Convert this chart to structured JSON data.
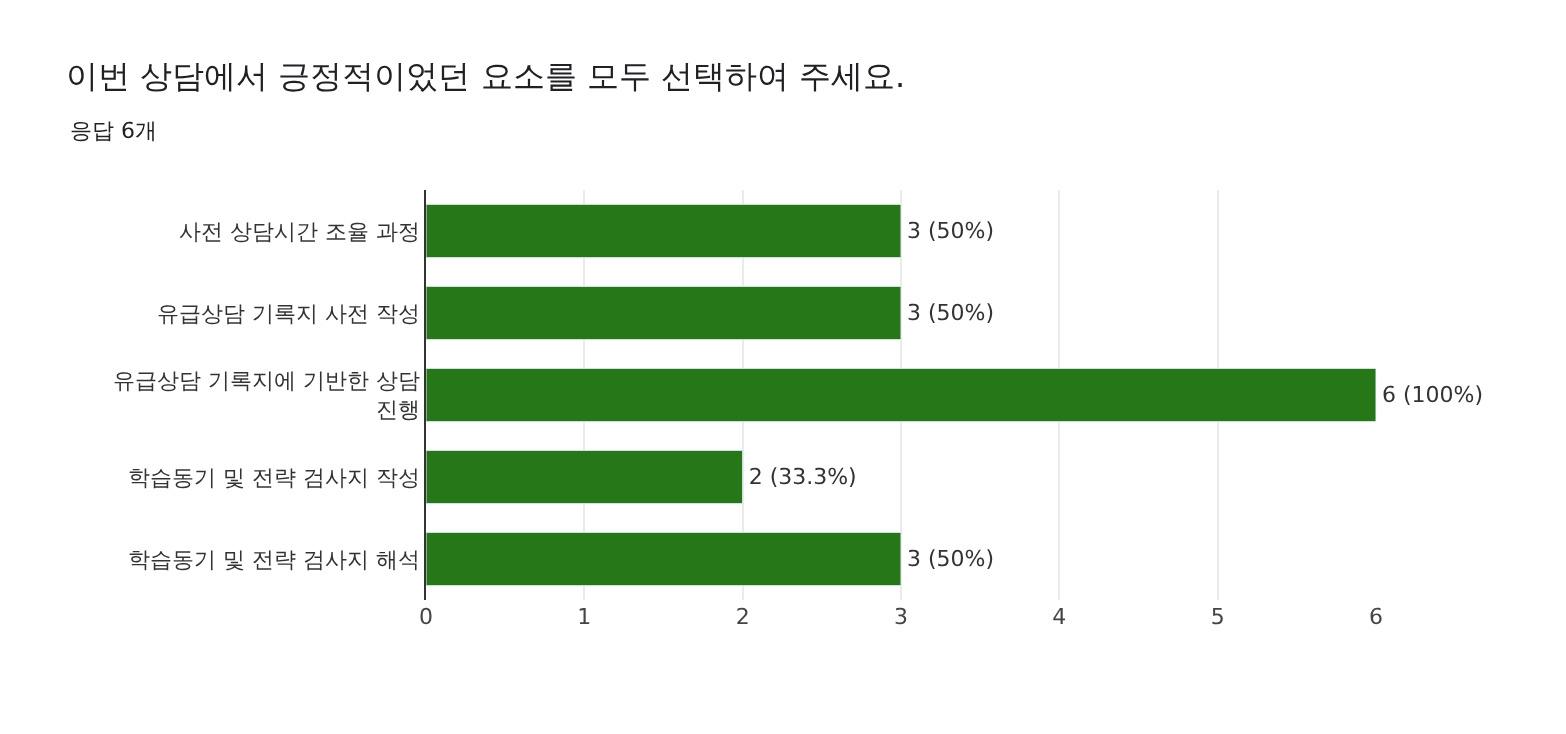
{
  "chart_data": {
    "type": "bar",
    "orientation": "horizontal",
    "title": "이번 상담에서 긍정적이었던 요소를 모두 선택하여 주세요.",
    "subtitle": "응답 6개",
    "categories": [
      "사전 상담시간 조율 과정",
      "유급상담 기록지 사전 작성",
      "유급상담 기록지에 기반한 상담 진행",
      "학습동기 및 전략 검사지 작성",
      "학습동기 및 전략 검사지 해석"
    ],
    "values": [
      3,
      3,
      6,
      2,
      3
    ],
    "value_labels": [
      "3 (50%)",
      "3 (50%)",
      "6 (100%)",
      "2 (33.3%)",
      "3 (50%)"
    ],
    "color": "#267718",
    "xlim": [
      0,
      6
    ],
    "xticks": [
      0,
      1,
      2,
      3,
      4,
      5,
      6
    ],
    "grid": "x",
    "legend": false
  }
}
